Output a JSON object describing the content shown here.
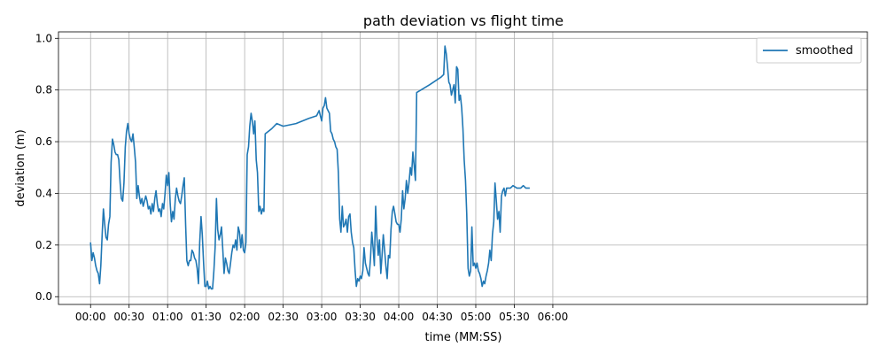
{
  "chart_data": {
    "type": "line",
    "title": "path deviation vs flight time",
    "xlabel": "time (MM:SS)",
    "ylabel": "deviation (m)",
    "xlim": [
      -25,
      605
    ],
    "ylim": [
      -0.03,
      1.025
    ],
    "grid": true,
    "legend_position": "top-right",
    "x_ticks": [
      {
        "value": 0,
        "label": "00:00"
      },
      {
        "value": 30,
        "label": "00:30"
      },
      {
        "value": 60,
        "label": "01:00"
      },
      {
        "value": 90,
        "label": "01:30"
      },
      {
        "value": 120,
        "label": "02:00"
      },
      {
        "value": 150,
        "label": "02:30"
      },
      {
        "value": 180,
        "label": "03:00"
      },
      {
        "value": 210,
        "label": "03:30"
      },
      {
        "value": 240,
        "label": "04:00"
      },
      {
        "value": 270,
        "label": "04:30"
      },
      {
        "value": 300,
        "label": "05:00"
      },
      {
        "value": 330,
        "label": "05:30"
      },
      {
        "value": 360,
        "label": "06:00"
      }
    ],
    "y_ticks": [
      {
        "value": 0.0,
        "label": "0.0"
      },
      {
        "value": 0.2,
        "label": "0.2"
      },
      {
        "value": 0.4,
        "label": "0.4"
      },
      {
        "value": 0.6,
        "label": "0.6"
      },
      {
        "value": 0.8,
        "label": "0.8"
      },
      {
        "value": 1.0,
        "label": "1.0"
      }
    ],
    "series": [
      {
        "name": "smoothed",
        "color": "#1f77b4",
        "points": [
          [
            0,
            0.21
          ],
          [
            1,
            0.14
          ],
          [
            2,
            0.17
          ],
          [
            3,
            0.15
          ],
          [
            4,
            0.12
          ],
          [
            5,
            0.1
          ],
          [
            6,
            0.09
          ],
          [
            7,
            0.05
          ],
          [
            8,
            0.12
          ],
          [
            9,
            0.24
          ],
          [
            10,
            0.34
          ],
          [
            11,
            0.28
          ],
          [
            12,
            0.23
          ],
          [
            13,
            0.22
          ],
          [
            14,
            0.28
          ],
          [
            15,
            0.31
          ],
          [
            16,
            0.52
          ],
          [
            17,
            0.61
          ],
          [
            18,
            0.59
          ],
          [
            19,
            0.56
          ],
          [
            20,
            0.55
          ],
          [
            21,
            0.55
          ],
          [
            22,
            0.53
          ],
          [
            23,
            0.44
          ],
          [
            24,
            0.38
          ],
          [
            25,
            0.37
          ],
          [
            26,
            0.44
          ],
          [
            27,
            0.58
          ],
          [
            28,
            0.64
          ],
          [
            29,
            0.67
          ],
          [
            30,
            0.63
          ],
          [
            31,
            0.61
          ],
          [
            32,
            0.6
          ],
          [
            33,
            0.63
          ],
          [
            34,
            0.58
          ],
          [
            35,
            0.52
          ],
          [
            36,
            0.38
          ],
          [
            37,
            0.43
          ],
          [
            38,
            0.39
          ],
          [
            39,
            0.36
          ],
          [
            40,
            0.38
          ],
          [
            41,
            0.35
          ],
          [
            42,
            0.37
          ],
          [
            43,
            0.39
          ],
          [
            44,
            0.37
          ],
          [
            45,
            0.34
          ],
          [
            46,
            0.35
          ],
          [
            47,
            0.32
          ],
          [
            48,
            0.36
          ],
          [
            49,
            0.33
          ],
          [
            50,
            0.38
          ],
          [
            51,
            0.41
          ],
          [
            52,
            0.36
          ],
          [
            53,
            0.33
          ],
          [
            54,
            0.34
          ],
          [
            55,
            0.31
          ],
          [
            56,
            0.36
          ],
          [
            57,
            0.34
          ],
          [
            58,
            0.4
          ],
          [
            59,
            0.47
          ],
          [
            60,
            0.43
          ],
          [
            61,
            0.48
          ],
          [
            62,
            0.36
          ],
          [
            63,
            0.29
          ],
          [
            64,
            0.33
          ],
          [
            65,
            0.3
          ],
          [
            66,
            0.38
          ],
          [
            67,
            0.42
          ],
          [
            68,
            0.39
          ],
          [
            69,
            0.37
          ],
          [
            70,
            0.36
          ],
          [
            71,
            0.39
          ],
          [
            72,
            0.43
          ],
          [
            73,
            0.46
          ],
          [
            74,
            0.28
          ],
          [
            75,
            0.14
          ],
          [
            76,
            0.12
          ],
          [
            77,
            0.14
          ],
          [
            78,
            0.14
          ],
          [
            79,
            0.18
          ],
          [
            80,
            0.17
          ],
          [
            81,
            0.15
          ],
          [
            82,
            0.14
          ],
          [
            83,
            0.11
          ],
          [
            84,
            0.05
          ],
          [
            85,
            0.21
          ],
          [
            86,
            0.31
          ],
          [
            87,
            0.24
          ],
          [
            88,
            0.13
          ],
          [
            89,
            0.04
          ],
          [
            90,
            0.04
          ],
          [
            91,
            0.06
          ],
          [
            92,
            0.03
          ],
          [
            93,
            0.04
          ],
          [
            94,
            0.03
          ],
          [
            95,
            0.03
          ],
          [
            96,
            0.1
          ],
          [
            97,
            0.19
          ],
          [
            98,
            0.38
          ],
          [
            99,
            0.26
          ],
          [
            100,
            0.22
          ],
          [
            101,
            0.24
          ],
          [
            102,
            0.27
          ],
          [
            103,
            0.18
          ],
          [
            104,
            0.09
          ],
          [
            105,
            0.15
          ],
          [
            106,
            0.13
          ],
          [
            107,
            0.1
          ],
          [
            108,
            0.09
          ],
          [
            109,
            0.13
          ],
          [
            110,
            0.17
          ],
          [
            111,
            0.2
          ],
          [
            112,
            0.19
          ],
          [
            113,
            0.22
          ],
          [
            114,
            0.18
          ],
          [
            115,
            0.27
          ],
          [
            116,
            0.25
          ],
          [
            117,
            0.19
          ],
          [
            118,
            0.24
          ],
          [
            119,
            0.18
          ],
          [
            120,
            0.17
          ],
          [
            121,
            0.21
          ],
          [
            122,
            0.55
          ],
          [
            123,
            0.58
          ],
          [
            124,
            0.66
          ],
          [
            125,
            0.71
          ],
          [
            126,
            0.68
          ],
          [
            127,
            0.63
          ],
          [
            128,
            0.68
          ],
          [
            129,
            0.53
          ],
          [
            130,
            0.48
          ],
          [
            131,
            0.33
          ],
          [
            132,
            0.35
          ],
          [
            133,
            0.32
          ],
          [
            134,
            0.34
          ],
          [
            135,
            0.33
          ],
          [
            136,
            0.63
          ],
          [
            141,
            0.65
          ],
          [
            145,
            0.67
          ],
          [
            150,
            0.66
          ],
          [
            160,
            0.67
          ],
          [
            170,
            0.69
          ],
          [
            176,
            0.7
          ],
          [
            178,
            0.72
          ],
          [
            179,
            0.7
          ],
          [
            180,
            0.68
          ],
          [
            181,
            0.73
          ],
          [
            182,
            0.74
          ],
          [
            183,
            0.77
          ],
          [
            184,
            0.73
          ],
          [
            185,
            0.72
          ],
          [
            186,
            0.71
          ],
          [
            187,
            0.64
          ],
          [
            188,
            0.63
          ],
          [
            189,
            0.61
          ],
          [
            190,
            0.6
          ],
          [
            191,
            0.58
          ],
          [
            192,
            0.57
          ],
          [
            193,
            0.48
          ],
          [
            194,
            0.3
          ],
          [
            195,
            0.25
          ],
          [
            196,
            0.35
          ],
          [
            197,
            0.27
          ],
          [
            198,
            0.28
          ],
          [
            199,
            0.3
          ],
          [
            200,
            0.25
          ],
          [
            201,
            0.31
          ],
          [
            202,
            0.32
          ],
          [
            203,
            0.25
          ],
          [
            204,
            0.21
          ],
          [
            205,
            0.19
          ],
          [
            206,
            0.1
          ],
          [
            207,
            0.04
          ],
          [
            208,
            0.07
          ],
          [
            209,
            0.06
          ],
          [
            210,
            0.08
          ],
          [
            211,
            0.07
          ],
          [
            212,
            0.1
          ],
          [
            213,
            0.19
          ],
          [
            214,
            0.13
          ],
          [
            215,
            0.11
          ],
          [
            216,
            0.09
          ],
          [
            217,
            0.08
          ],
          [
            218,
            0.15
          ],
          [
            219,
            0.25
          ],
          [
            220,
            0.19
          ],
          [
            221,
            0.12
          ],
          [
            222,
            0.35
          ],
          [
            223,
            0.23
          ],
          [
            224,
            0.16
          ],
          [
            225,
            0.22
          ],
          [
            226,
            0.09
          ],
          [
            227,
            0.16
          ],
          [
            228,
            0.24
          ],
          [
            229,
            0.18
          ],
          [
            230,
            0.12
          ],
          [
            231,
            0.07
          ],
          [
            232,
            0.16
          ],
          [
            233,
            0.15
          ],
          [
            234,
            0.26
          ],
          [
            235,
            0.33
          ],
          [
            236,
            0.35
          ],
          [
            237,
            0.32
          ],
          [
            238,
            0.29
          ],
          [
            239,
            0.28
          ],
          [
            240,
            0.28
          ],
          [
            241,
            0.25
          ],
          [
            242,
            0.3
          ],
          [
            243,
            0.41
          ],
          [
            244,
            0.34
          ],
          [
            245,
            0.38
          ],
          [
            246,
            0.45
          ],
          [
            247,
            0.4
          ],
          [
            248,
            0.44
          ],
          [
            249,
            0.5
          ],
          [
            250,
            0.47
          ],
          [
            251,
            0.56
          ],
          [
            252,
            0.51
          ],
          [
            253,
            0.45
          ],
          [
            254,
            0.79
          ],
          [
            264,
            0.82
          ],
          [
            273,
            0.85
          ],
          [
            275,
            0.86
          ],
          [
            276,
            0.97
          ],
          [
            277,
            0.94
          ],
          [
            278,
            0.89
          ],
          [
            279,
            0.83
          ],
          [
            280,
            0.82
          ],
          [
            281,
            0.78
          ],
          [
            282,
            0.8
          ],
          [
            283,
            0.82
          ],
          [
            284,
            0.75
          ],
          [
            285,
            0.89
          ],
          [
            286,
            0.88
          ],
          [
            287,
            0.76
          ],
          [
            288,
            0.78
          ],
          [
            289,
            0.73
          ],
          [
            290,
            0.65
          ],
          [
            291,
            0.53
          ],
          [
            292,
            0.45
          ],
          [
            293,
            0.32
          ],
          [
            294,
            0.11
          ],
          [
            295,
            0.08
          ],
          [
            296,
            0.1
          ],
          [
            297,
            0.27
          ],
          [
            298,
            0.12
          ],
          [
            299,
            0.13
          ],
          [
            300,
            0.11
          ],
          [
            301,
            0.13
          ],
          [
            302,
            0.1
          ],
          [
            303,
            0.09
          ],
          [
            304,
            0.07
          ],
          [
            305,
            0.04
          ],
          [
            306,
            0.06
          ],
          [
            307,
            0.05
          ],
          [
            308,
            0.08
          ],
          [
            309,
            0.1
          ],
          [
            310,
            0.13
          ],
          [
            311,
            0.18
          ],
          [
            312,
            0.14
          ],
          [
            313,
            0.24
          ],
          [
            314,
            0.29
          ],
          [
            315,
            0.44
          ],
          [
            316,
            0.37
          ],
          [
            317,
            0.3
          ],
          [
            318,
            0.33
          ],
          [
            319,
            0.25
          ],
          [
            320,
            0.39
          ],
          [
            321,
            0.41
          ],
          [
            322,
            0.42
          ],
          [
            323,
            0.39
          ],
          [
            324,
            0.42
          ],
          [
            327,
            0.42
          ],
          [
            329,
            0.43
          ],
          [
            332,
            0.42
          ],
          [
            335,
            0.42
          ],
          [
            337,
            0.43
          ],
          [
            339,
            0.42
          ],
          [
            341,
            0.42
          ],
          [
            342,
            0.42
          ]
        ]
      }
    ]
  }
}
